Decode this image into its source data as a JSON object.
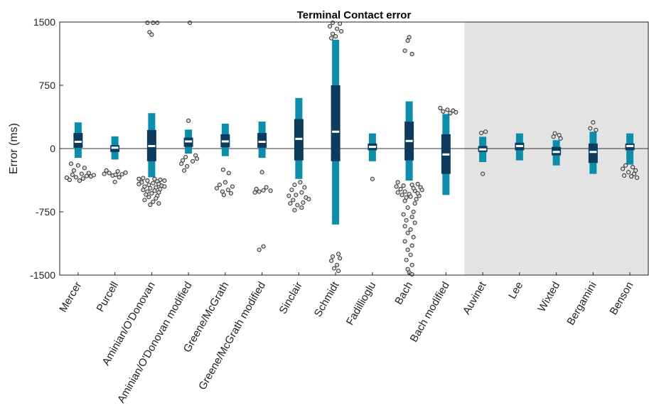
{
  "chart_data": {
    "type": "box",
    "title": "Terminal Contact error",
    "ylabel": "Error (ms)",
    "xlabel": "",
    "ylim": [
      -1500,
      1500
    ],
    "yticks": [
      -1500,
      -750,
      0,
      750,
      1500
    ],
    "grid": false,
    "shaded_region_start_index": 11,
    "colors": {
      "whisker": "#0a8eab",
      "iqr": "#0d3b5e",
      "median": "#ffffff",
      "outlier_fill": "#d8d8d8",
      "outlier_edge": "#222222",
      "shade": "#e3e3e3",
      "zero_line": "#333333"
    },
    "categories": [
      "Mercer",
      "Purcell",
      "Aminian/O'Donovan",
      "Aminian/O'Donovan modified",
      "Greene/McGrath",
      "Greene/McGrath modified",
      "Sinclair",
      "Schmidt",
      "Fadillioglu",
      "Bach",
      "Bach modified",
      "Auvinet",
      "Lee",
      "Wixted",
      "Bergamini",
      "Benson"
    ],
    "boxes": [
      {
        "whisker_low": -110,
        "q1": 10,
        "median": 80,
        "q3": 185,
        "whisker_high": 310,
        "outliers": [
          [
            -300,
            5
          ],
          [
            -310,
            -8
          ],
          [
            -325,
            12
          ],
          [
            -340,
            -3
          ],
          [
            -355,
            7
          ],
          [
            -370,
            -12
          ],
          [
            -290,
            15
          ],
          [
            -260,
            -6
          ],
          [
            -230,
            9
          ],
          [
            -200,
            0
          ],
          [
            -180,
            -10
          ],
          [
            -330,
            18
          ],
          [
            -345,
            -16
          ],
          [
            -315,
            22
          ],
          [
            -380,
            2
          ]
        ]
      },
      {
        "whisker_low": -130,
        "q1": -40,
        "median": 10,
        "q3": 40,
        "whisker_high": 145,
        "outliers": [
          [
            -270,
            4
          ],
          [
            -290,
            -8
          ],
          [
            -305,
            10
          ],
          [
            -320,
            -3
          ],
          [
            -340,
            6
          ],
          [
            -260,
            -12
          ],
          [
            -285,
            15
          ],
          [
            -300,
            -15
          ],
          [
            -310,
            1
          ],
          [
            -395,
            0
          ]
        ]
      },
      {
        "whisker_low": -340,
        "q1": -150,
        "median": 30,
        "q3": 220,
        "whisker_high": 420,
        "outliers": [
          [
            1500,
            -6
          ],
          [
            1500,
            2
          ],
          [
            1500,
            8
          ],
          [
            1380,
            -3
          ],
          [
            1350,
            0
          ],
          [
            -350,
            -12
          ],
          [
            -360,
            4
          ],
          [
            -370,
            12
          ],
          [
            -380,
            -6
          ],
          [
            -390,
            8
          ],
          [
            -400,
            -14
          ],
          [
            -410,
            2
          ],
          [
            -420,
            10
          ],
          [
            -430,
            -4
          ],
          [
            -440,
            14
          ],
          [
            -450,
            -10
          ],
          [
            -460,
            6
          ],
          [
            -470,
            -2
          ],
          [
            -480,
            12
          ],
          [
            -490,
            -12
          ],
          [
            -500,
            4
          ],
          [
            -510,
            -6
          ],
          [
            -520,
            10
          ],
          [
            -530,
            0
          ],
          [
            -545,
            -8
          ],
          [
            -560,
            8
          ],
          [
            -575,
            -4
          ],
          [
            -590,
            6
          ],
          [
            -610,
            -10
          ],
          [
            -630,
            2
          ],
          [
            -650,
            10
          ],
          [
            -665,
            -2
          ],
          [
            -360,
            -18
          ],
          [
            -380,
            18
          ],
          [
            -420,
            -18
          ],
          [
            -450,
            18
          ]
        ]
      },
      {
        "whisker_low": -60,
        "q1": 20,
        "median": 85,
        "q3": 130,
        "whisker_high": 225,
        "outliers": [
          [
            1500,
            2
          ],
          [
            330,
            0
          ],
          [
            -80,
            10
          ],
          [
            -100,
            -4
          ],
          [
            -120,
            12
          ],
          [
            -140,
            -8
          ],
          [
            -150,
            6
          ],
          [
            -180,
            -10
          ],
          [
            -210,
            -2
          ],
          [
            -260,
            -6
          ]
        ]
      },
      {
        "whisker_low": -90,
        "q1": 15,
        "median": 85,
        "q3": 170,
        "whisker_high": 295,
        "outliers": [
          [
            -250,
            -3
          ],
          [
            -290,
            5
          ],
          [
            -400,
            0
          ],
          [
            -430,
            -8
          ],
          [
            -450,
            10
          ],
          [
            -470,
            -12
          ],
          [
            -490,
            4
          ],
          [
            -510,
            -4
          ],
          [
            -530,
            8
          ],
          [
            -550,
            -2
          ]
        ]
      },
      {
        "whisker_low": -110,
        "q1": 10,
        "median": 80,
        "q3": 185,
        "whisker_high": 320,
        "outliers": [
          [
            -280,
            0
          ],
          [
            -460,
            6
          ],
          [
            -480,
            -8
          ],
          [
            -495,
            2
          ],
          [
            -500,
            12
          ],
          [
            -510,
            -4
          ],
          [
            -520,
            -10
          ],
          [
            -1160,
            2
          ],
          [
            -1200,
            -4
          ]
        ]
      },
      {
        "whisker_low": -360,
        "q1": -140,
        "median": 115,
        "q3": 350,
        "whisker_high": 600,
        "outliers": [
          [
            -400,
            2
          ],
          [
            -430,
            -6
          ],
          [
            -460,
            8
          ],
          [
            -490,
            -10
          ],
          [
            -520,
            4
          ],
          [
            -550,
            -4
          ],
          [
            -580,
            10
          ],
          [
            -610,
            -8
          ],
          [
            -640,
            6
          ],
          [
            -670,
            -2
          ],
          [
            -700,
            4
          ],
          [
            -730,
            -6
          ],
          [
            -560,
            -14
          ],
          [
            -600,
            14
          ],
          [
            -650,
            -12
          ]
        ]
      },
      {
        "whisker_low": -900,
        "q1": -150,
        "median": 200,
        "q3": 750,
        "whisker_high": 1290,
        "outliers": [
          [
            1500,
            -4
          ],
          [
            1480,
            6
          ],
          [
            1450,
            -8
          ],
          [
            1420,
            2
          ],
          [
            1390,
            8
          ],
          [
            1360,
            -4
          ],
          [
            1330,
            0
          ],
          [
            1310,
            -6
          ],
          [
            -1250,
            4
          ],
          [
            -1280,
            -4
          ],
          [
            -1300,
            6
          ],
          [
            -1330,
            -6
          ],
          [
            -1380,
            2
          ],
          [
            -1420,
            -2
          ],
          [
            -1450,
            4
          ]
        ]
      },
      {
        "whisker_low": -150,
        "q1": -20,
        "median": 20,
        "q3": 60,
        "whisker_high": 180,
        "outliers": [
          [
            -360,
            0
          ]
        ]
      },
      {
        "whisker_low": -380,
        "q1": -140,
        "median": 90,
        "q3": 320,
        "whisker_high": 560,
        "outliers": [
          [
            1320,
            0
          ],
          [
            1280,
            -2
          ],
          [
            1160,
            -6
          ],
          [
            1120,
            4
          ],
          [
            -400,
            -16
          ],
          [
            -420,
            12
          ],
          [
            -440,
            -8
          ],
          [
            -460,
            16
          ],
          [
            -480,
            -12
          ],
          [
            -500,
            8
          ],
          [
            -520,
            -16
          ],
          [
            -540,
            0
          ],
          [
            -560,
            14
          ],
          [
            -580,
            -4
          ],
          [
            -600,
            10
          ],
          [
            -430,
            4
          ],
          [
            -450,
            -18
          ],
          [
            -470,
            6
          ],
          [
            -490,
            18
          ],
          [
            -510,
            -6
          ],
          [
            -530,
            12
          ],
          [
            -550,
            -10
          ],
          [
            -570,
            2
          ],
          [
            -620,
            -6
          ],
          [
            -650,
            8
          ],
          [
            -700,
            -2
          ],
          [
            -750,
            6
          ],
          [
            -780,
            -8
          ],
          [
            -810,
            4
          ],
          [
            -850,
            -4
          ],
          [
            -880,
            8
          ],
          [
            -920,
            -6
          ],
          [
            -960,
            2
          ],
          [
            -1000,
            -2
          ],
          [
            -1050,
            6
          ],
          [
            -1100,
            -6
          ],
          [
            -1150,
            4
          ],
          [
            -1200,
            -2
          ],
          [
            -1260,
            2
          ],
          [
            -1320,
            -4
          ],
          [
            -1380,
            4
          ],
          [
            -1430,
            -2
          ],
          [
            -1470,
            0
          ],
          [
            -1500,
            4
          ]
        ]
      },
      {
        "whisker_low": -550,
        "q1": -300,
        "median": -70,
        "q3": 170,
        "whisker_high": 410,
        "outliers": [
          [
            480,
            -8
          ],
          [
            460,
            2
          ],
          [
            450,
            10
          ],
          [
            440,
            -4
          ],
          [
            430,
            14
          ],
          [
            420,
            6
          ]
        ]
      },
      {
        "whisker_low": -160,
        "q1": -40,
        "median": -10,
        "q3": 30,
        "whisker_high": 140,
        "outliers": [
          [
            200,
            4
          ],
          [
            185,
            -2
          ],
          [
            -300,
            0
          ]
        ]
      },
      {
        "whisker_low": -140,
        "q1": -20,
        "median": 30,
        "q3": 70,
        "whisker_high": 180,
        "outliers": []
      },
      {
        "whisker_low": -200,
        "q1": -80,
        "median": -40,
        "q3": 20,
        "whisker_high": 100,
        "outliers": [
          [
            180,
            -2
          ],
          [
            160,
            4
          ],
          [
            140,
            -4
          ],
          [
            120,
            6
          ]
        ]
      },
      {
        "whisker_low": -300,
        "q1": -170,
        "median": -40,
        "q3": 60,
        "whisker_high": 200,
        "outliers": [
          [
            310,
            0
          ],
          [
            240,
            -4
          ],
          [
            220,
            4
          ]
        ]
      },
      {
        "whisker_low": -190,
        "q1": -20,
        "median": 30,
        "q3": 60,
        "whisker_high": 180,
        "outliers": [
          [
            -200,
            -6
          ],
          [
            -220,
            4
          ],
          [
            -240,
            -10
          ],
          [
            -260,
            8
          ],
          [
            -280,
            -2
          ],
          [
            -300,
            6
          ],
          [
            -320,
            -8
          ],
          [
            -330,
            2
          ],
          [
            -345,
            10
          ]
        ]
      }
    ]
  }
}
